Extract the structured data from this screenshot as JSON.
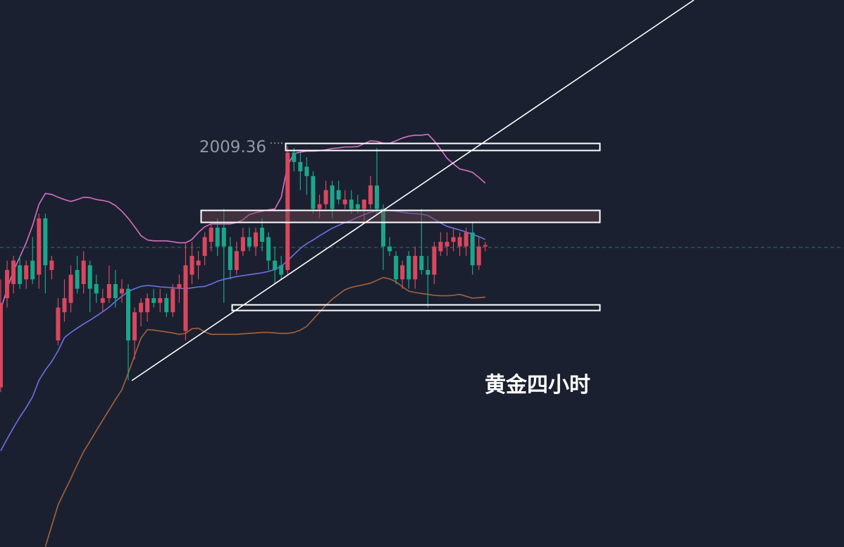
{
  "chart_data": {
    "type": "candlestick",
    "title": "黄金四小时",
    "annotation": "2009.36",
    "up_color": "#d9475e",
    "down_color": "#1aa68a",
    "ylim": [
      1924,
      2040.5
    ],
    "ohlc": [
      [
        1958,
        1981,
        1957,
        1976
      ],
      [
        1977,
        1985,
        1975,
        1983
      ],
      [
        1980,
        1986,
        1978,
        1985
      ],
      [
        1984,
        1986,
        1979,
        1980
      ],
      [
        1981,
        1985,
        1979,
        1984
      ],
      [
        1985,
        1990,
        1980,
        1981
      ],
      [
        1982,
        1995,
        1979,
        1994
      ],
      [
        1994,
        1995,
        1978,
        1984
      ],
      [
        1983,
        1986,
        1981,
        1985
      ],
      [
        1968,
        1977,
        1967,
        1975
      ],
      [
        1974,
        1981,
        1972,
        1977
      ],
      [
        1976,
        1984,
        1974,
        1982
      ],
      [
        1983,
        1986,
        1978,
        1979
      ],
      [
        1980,
        1987,
        1978,
        1985
      ],
      [
        1984,
        1985,
        1974,
        1979
      ],
      [
        1980,
        1982,
        1976,
        1978
      ],
      [
        1976,
        1979,
        1974,
        1977
      ],
      [
        1977,
        1984,
        1976,
        1980
      ],
      [
        1980,
        1983,
        1975,
        1977
      ],
      [
        1978,
        1981,
        1976,
        1979
      ],
      [
        1979,
        1980,
        1959.5,
        1968
      ],
      [
        1968,
        1975,
        1964,
        1974
      ],
      [
        1974,
        1977,
        1971,
        1976
      ],
      [
        1974,
        1978,
        1972,
        1977
      ],
      [
        1977,
        1979,
        1975,
        1976
      ],
      [
        1976,
        1979,
        1974,
        1977
      ],
      [
        1977,
        1978,
        1973,
        1974
      ],
      [
        1974,
        1980,
        1973,
        1979
      ],
      [
        1979,
        1982,
        1976,
        1980
      ],
      [
        1970,
        1989,
        1968,
        1984
      ],
      [
        1982,
        1989,
        1980,
        1986
      ],
      [
        1984,
        1987,
        1981,
        1985
      ],
      [
        1986,
        1991,
        1984,
        1990
      ],
      [
        1989,
        1993,
        1987,
        1992
      ],
      [
        1992,
        1994,
        1986,
        1988
      ],
      [
        1992,
        1996,
        1976,
        1988
      ],
      [
        1988,
        1990,
        1981,
        1983
      ],
      [
        1983,
        1989,
        1982,
        1987
      ],
      [
        1987,
        1992,
        1986,
        1990
      ],
      [
        1990,
        1992,
        1987,
        1988
      ],
      [
        1988,
        1992,
        1986,
        1991
      ],
      [
        1992,
        1994,
        1987,
        1989
      ],
      [
        1990,
        1991,
        1983,
        1985
      ],
      [
        1985,
        1988,
        1980,
        1983
      ],
      [
        1984,
        1986,
        1981,
        1982
      ],
      [
        1983,
        2009.36,
        1982,
        2008
      ],
      [
        2008,
        2009,
        2004,
        2006
      ],
      [
        2006,
        2008,
        2000,
        2004
      ],
      [
        2005,
        2007,
        1999,
        2003
      ],
      [
        2003,
        2004,
        1995,
        1996
      ],
      [
        1996,
        1999,
        1994,
        1997
      ],
      [
        1997,
        2002,
        1996,
        2000
      ],
      [
        2001,
        2002,
        1994,
        1996
      ],
      [
        2000,
        2002,
        1997,
        1998
      ],
      [
        1997,
        2000,
        1996,
        1998
      ],
      [
        1998,
        2000,
        1995,
        1996
      ],
      [
        1997,
        1999,
        1995,
        1996
      ],
      [
        1996,
        1998,
        1993,
        1998
      ],
      [
        1997,
        2003,
        1996,
        2001
      ],
      [
        2001,
        2009,
        1995,
        1996
      ],
      [
        1996,
        1997,
        1983,
        1988
      ],
      [
        1988,
        1990,
        1986,
        1987
      ],
      [
        1986,
        1987,
        1980,
        1981
      ],
      [
        1981,
        1985,
        1979,
        1984
      ],
      [
        1986,
        1987,
        1979,
        1981
      ],
      [
        1981,
        1988,
        1979,
        1986
      ],
      [
        1986,
        1996,
        1982,
        1983
      ],
      [
        1983,
        1986,
        1975,
        1982
      ],
      [
        1982,
        1989,
        1980,
        1988
      ],
      [
        1987,
        1991,
        1986,
        1989
      ],
      [
        1988,
        1991,
        1986,
        1989
      ],
      [
        1989,
        1992,
        1987,
        1990
      ],
      [
        1988,
        1991,
        1986,
        1990
      ],
      [
        1988,
        1992,
        1986,
        1991
      ],
      [
        1991,
        1993,
        1982,
        1984
      ],
      [
        1984,
        1990,
        1983,
        1988
      ],
      [
        1988,
        1989,
        1987,
        1988.3
      ]
    ],
    "lines": [
      {
        "color": "#d670c2",
        "values": [
          1974.5,
          1979,
          1982.8,
          1985.8,
          1988.8,
          1992.5,
          1997,
          1999.3,
          1999.1,
          1998.5,
          1998,
          1997.6,
          1998,
          1998.5,
          1998.4,
          1998,
          1997.8,
          1997.5,
          1996.7,
          1995.5,
          1994,
          1992.2,
          1990.3,
          1989.4,
          1989.2,
          1989.2,
          1989.2,
          1989,
          1988.8,
          1988.8,
          1989.5,
          1991,
          1992.2,
          1992.8,
          1992.8,
          1992.8,
          1992.8,
          1993.1,
          1993.7,
          1994.8,
          1995.2,
          1995.5,
          1995.8,
          1996,
          1998.5,
          2005.3,
          2007.8,
          2008.1,
          2008.3,
          2008.3,
          2008.4,
          2008.6,
          2008.9,
          2009,
          2009.2,
          2009.2,
          2009.3,
          2009.9,
          2010.5,
          2010.4,
          2010,
          2010,
          2010.5,
          2011.1,
          2011.5,
          2011.7,
          2011.7,
          2011.9,
          2010.5,
          2008.7,
          2006.8,
          2005.6,
          2004.5,
          2004.2,
          2003.8,
          2002.7,
          2001.5
        ]
      },
      {
        "color": "#6a73e6",
        "values": [
          1944.5,
          1947,
          1949.4,
          1951.7,
          1953.7,
          1956,
          1959.5,
          1961.7,
          1963.5,
          1965.8,
          1968.6,
          1969.7,
          1970.6,
          1971.5,
          1972.3,
          1973.2,
          1974.1,
          1975.1,
          1976.3,
          1977.4,
          1978.4,
          1979,
          1979.5,
          1979.7,
          1979.6,
          1979.4,
          1979.3,
          1979.2,
          1979.1,
          1979,
          1979.2,
          1979.4,
          1979.5,
          1980,
          1980.6,
          1981,
          1981.3,
          1981.6,
          1981.8,
          1982,
          1982.2,
          1982.4,
          1982.7,
          1983.1,
          1983.8,
          1985,
          1986.3,
          1987.6,
          1988.6,
          1989.4,
          1990.3,
          1991.1,
          1991.9,
          1992.5,
          1993.1,
          1993.6,
          1994.2,
          1994.8,
          1995.3,
          1995.6,
          1995.8,
          1995.7,
          1995.5,
          1995.3,
          1995.1,
          1995,
          1994.9,
          1994.6,
          1993.8,
          1993,
          1992.3,
          1991.9,
          1991.5,
          1991.1,
          1990.6,
          1990.1,
          1989.5
        ]
      },
      {
        "color": "#a5633a",
        "values": [
          null,
          null,
          null,
          null,
          null,
          null,
          null,
          1924.1,
          1928.5,
          1933,
          1935.8,
          1938.6,
          1941.5,
          1944.3,
          1946.5,
          1948.8,
          1951,
          1953.2,
          1955.4,
          1957.5,
          1961,
          1964.8,
          1968.5,
          1970.3,
          1970.2,
          1970,
          1969.8,
          1969.6,
          1969.3,
          1969.5,
          1970.5,
          1970.6,
          1969.8,
          1969.3,
          1969.3,
          1969.3,
          1969.3,
          1969.3,
          1969.4,
          1969.5,
          1969.6,
          1969.7,
          1969.7,
          1969.6,
          1969.5,
          1969.5,
          1969.7,
          1970.2,
          1971,
          1972.5,
          1974,
          1975.5,
          1976.8,
          1977.8,
          1978.8,
          1979.3,
          1979.6,
          1979.9,
          1980.2,
          1980.8,
          1981.4,
          1981.1,
          1980.5,
          1979.4,
          1978.5,
          1978.2,
          1978,
          1977.8,
          1977.6,
          1977.5,
          1977.5,
          1977.6,
          1977.8,
          1977.4,
          1977,
          1977.1,
          1977.2
        ]
      }
    ]
  }
}
